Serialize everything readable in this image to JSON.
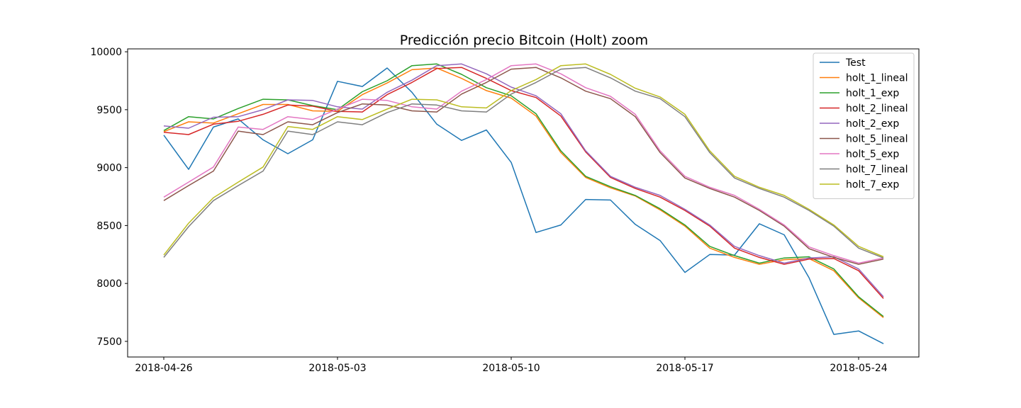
{
  "chart_data": {
    "type": "line",
    "title": "Predicción precio Bitcoin (Holt) zoom",
    "xlabel": "",
    "ylabel": "",
    "x_start": "2018-04-26",
    "x_end": "2018-05-26",
    "x_ticks": [
      "2018-04-26",
      "2018-05-03",
      "2018-05-10",
      "2018-05-17",
      "2018-05-24"
    ],
    "ylim": [
      7365,
      10025
    ],
    "y_ticks": [
      7500,
      8000,
      8500,
      9000,
      9500,
      10000
    ],
    "grid": false,
    "legend_position": "top-right",
    "series": [
      {
        "name": "Test",
        "color": "#1f77b4",
        "values": [
          9280,
          8985,
          9350,
          9420,
          9240,
          9120,
          9240,
          9745,
          9700,
          9860,
          9650,
          9375,
          9235,
          9325,
          9045,
          8440,
          8505,
          8725,
          8720,
          8510,
          8370,
          8095,
          8250,
          8245,
          8515,
          8420,
          8050,
          7560,
          7590,
          7480
        ]
      },
      {
        "name": "holt_1_lineal",
        "color": "#ff7f0e",
        "values": [
          9310,
          9395,
          9385,
          9465,
          9545,
          9545,
          9490,
          9485,
          9630,
          9730,
          9845,
          9860,
          9770,
          9665,
          9600,
          9445,
          9130,
          8915,
          8825,
          8755,
          8635,
          8495,
          8305,
          8225,
          8165,
          8205,
          8215,
          8110,
          7875,
          7705
        ]
      },
      {
        "name": "holt_1_exp",
        "color": "#2ca02c",
        "values": [
          9320,
          9440,
          9420,
          9510,
          9590,
          9585,
          9535,
          9500,
          9655,
          9750,
          9880,
          9895,
          9805,
          9690,
          9620,
          9465,
          9145,
          8925,
          8835,
          8760,
          8645,
          8505,
          8320,
          8240,
          8175,
          8220,
          8230,
          8125,
          7885,
          7715
        ]
      },
      {
        "name": "holt_2_lineal",
        "color": "#d62728",
        "values": [
          9305,
          9285,
          9375,
          9400,
          9460,
          9540,
          9530,
          9485,
          9480,
          9630,
          9735,
          9855,
          9865,
          9770,
          9665,
          9605,
          9445,
          9135,
          8915,
          8820,
          8745,
          8630,
          8495,
          8305,
          8225,
          8165,
          8210,
          8215,
          8110,
          7870
        ]
      },
      {
        "name": "holt_2_exp",
        "color": "#9467bd",
        "values": [
          9360,
          9340,
          9435,
          9440,
          9500,
          9585,
          9580,
          9525,
          9505,
          9650,
          9755,
          9880,
          9895,
          9810,
          9695,
          9620,
          9465,
          9145,
          8925,
          8830,
          8760,
          8640,
          8505,
          8320,
          8240,
          8175,
          8220,
          8230,
          8125,
          7885
        ]
      },
      {
        "name": "holt_5_lineal",
        "color": "#8c564b",
        "values": [
          8715,
          8845,
          8970,
          9315,
          9285,
          9395,
          9370,
          9475,
          9550,
          9540,
          9490,
          9480,
          9635,
          9735,
          9850,
          9865,
          9775,
          9660,
          9595,
          9440,
          9130,
          8910,
          8820,
          8745,
          8630,
          8495,
          8300,
          8225,
          8165,
          8210
        ]
      },
      {
        "name": "holt_5_exp",
        "color": "#e377c2",
        "values": [
          8745,
          8875,
          9005,
          9350,
          9330,
          9440,
          9415,
          9505,
          9590,
          9580,
          9525,
          9505,
          9660,
          9760,
          9880,
          9895,
          9810,
          9690,
          9615,
          9460,
          9145,
          8925,
          8830,
          8760,
          8640,
          8505,
          8315,
          8240,
          8175,
          8220
        ]
      },
      {
        "name": "holt_7_lineal",
        "color": "#7f7f7f",
        "values": [
          8225,
          8490,
          8715,
          8845,
          8970,
          9315,
          9285,
          9395,
          9370,
          9475,
          9550,
          9540,
          9490,
          9480,
          9635,
          9735,
          9850,
          9865,
          9775,
          9660,
          9595,
          9440,
          9130,
          8910,
          8820,
          8745,
          8630,
          8495,
          8305,
          8220
        ]
      },
      {
        "name": "holt_7_exp",
        "color": "#bcbd22",
        "values": [
          8245,
          8520,
          8740,
          8875,
          9005,
          9355,
          9330,
          9440,
          9415,
          9505,
          9590,
          9585,
          9525,
          9515,
          9665,
          9760,
          9880,
          9895,
          9805,
          9685,
          9610,
          9460,
          9145,
          8925,
          8830,
          8760,
          8640,
          8505,
          8320,
          8230
        ]
      }
    ]
  }
}
